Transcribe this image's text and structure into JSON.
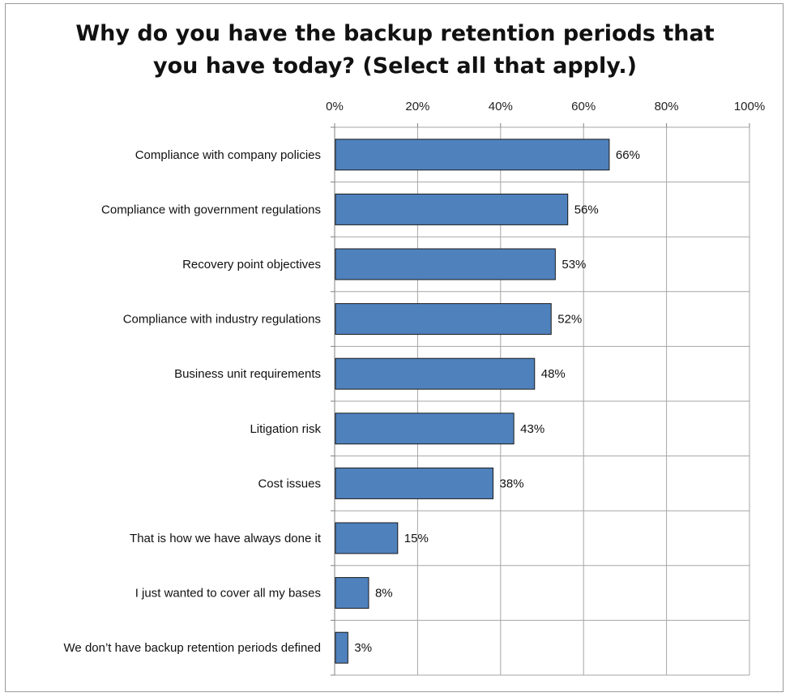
{
  "chart_data": {
    "type": "bar",
    "orientation": "horizontal",
    "title_lines": [
      "Why do you have the backup retention periods that",
      "you have today?  (Select all that apply.)"
    ],
    "xlabel": "",
    "ylabel": "",
    "xlim": [
      0,
      100
    ],
    "x_ticks": [
      0,
      20,
      40,
      60,
      80,
      100
    ],
    "x_tick_labels": [
      "0%",
      "20%",
      "40%",
      "60%",
      "80%",
      "100%"
    ],
    "x_axis_position": "top",
    "grid": true,
    "legend": "none",
    "bar_color": "#4f81bd",
    "bar_edge_color": "#1a1a1a",
    "categories": [
      "Compliance with company policies",
      "Compliance with government regulations",
      "Recovery point objectives",
      "Compliance with industry regulations",
      "Business unit requirements",
      "Litigation risk",
      "Cost issues",
      "That is how we have always done it",
      "I just wanted to cover all my bases",
      "We don’t have backup retention periods defined"
    ],
    "values": [
      66,
      56,
      53,
      52,
      48,
      43,
      38,
      15,
      8,
      3
    ],
    "value_labels": [
      "66%",
      "56%",
      "53%",
      "52%",
      "48%",
      "43%",
      "38%",
      "15%",
      "8%",
      "3%"
    ]
  }
}
